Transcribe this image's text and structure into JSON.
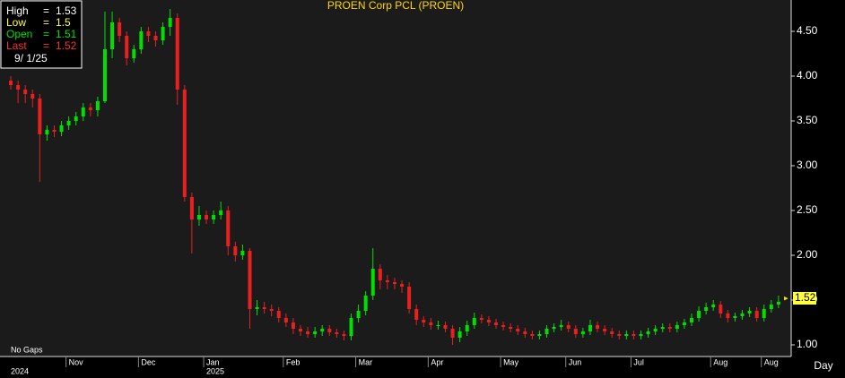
{
  "chart_data": {
    "type": "candlestick",
    "title": "PROEN  Corp  PCL  (PROEN)",
    "ylim": [
      0.87,
      4.85
    ],
    "yticks": [
      {
        "value": 1.0,
        "label": "1.00"
      },
      {
        "value": 1.5,
        "label": "1.50"
      },
      {
        "value": 2.0,
        "label": "2.00"
      },
      {
        "value": 2.5,
        "label": "2.50"
      },
      {
        "value": 3.0,
        "label": "3.00"
      },
      {
        "value": 3.5,
        "label": "3.50"
      },
      {
        "value": 4.0,
        "label": "4.00"
      },
      {
        "value": 4.5,
        "label": "4.50"
      }
    ],
    "up_color": "#00e000",
    "down_color": "#e82020",
    "categories": [
      null,
      null,
      null,
      null,
      null,
      null,
      null,
      null,
      "Nov",
      null,
      null,
      null,
      null,
      null,
      null,
      null,
      null,
      null,
      "Dec",
      null,
      null,
      null,
      null,
      null,
      null,
      null,
      null,
      "Jan",
      null,
      null,
      null,
      null,
      null,
      null,
      null,
      null,
      null,
      null,
      "Feb",
      null,
      null,
      null,
      null,
      null,
      null,
      null,
      null,
      null,
      "Mar",
      null,
      null,
      null,
      null,
      null,
      null,
      null,
      null,
      null,
      "Apr",
      null,
      null,
      null,
      null,
      null,
      null,
      null,
      null,
      null,
      "May",
      null,
      null,
      null,
      null,
      null,
      null,
      null,
      null,
      "Jun",
      null,
      null,
      null,
      null,
      null,
      null,
      null,
      null,
      "Jul",
      null,
      null,
      null,
      null,
      null,
      null,
      null,
      null,
      null,
      null,
      "Aug",
      null,
      null,
      null,
      null,
      null,
      null,
      "Aug",
      null,
      null,
      null
    ],
    "year_categories": [
      "2024",
      null,
      null,
      null,
      null,
      null,
      null,
      null,
      null,
      null,
      null,
      null,
      null,
      null,
      null,
      null,
      null,
      null,
      null,
      null,
      null,
      null,
      null,
      null,
      null,
      null,
      null,
      "2025",
      null,
      null
    ],
    "open": [
      3.95,
      3.9,
      3.85,
      3.8,
      3.75,
      3.35,
      3.4,
      3.38,
      3.45,
      3.5,
      3.55,
      3.65,
      3.62,
      3.72,
      4.3,
      4.6,
      4.45,
      4.2,
      4.3,
      4.5,
      4.45,
      4.4,
      4.55,
      4.65,
      3.85,
      2.65,
      2.4,
      2.45,
      2.4,
      2.45,
      2.5,
      2.1,
      2.0,
      2.05,
      1.4,
      1.42,
      1.4,
      1.38,
      1.3,
      1.25,
      1.18,
      1.15,
      1.12,
      1.15,
      1.18,
      1.14,
      1.12,
      1.1,
      1.3,
      1.38,
      1.55,
      1.85,
      1.72,
      1.7,
      1.68,
      1.65,
      1.4,
      1.28,
      1.25,
      1.22,
      1.22,
      1.18,
      1.08,
      1.15,
      1.22,
      1.3,
      1.28,
      1.25,
      1.22,
      1.2,
      1.18,
      1.15,
      1.12,
      1.1,
      1.12,
      1.18,
      1.2,
      1.22,
      1.18,
      1.12,
      1.15,
      1.22,
      1.18,
      1.15,
      1.12,
      1.1,
      1.12,
      1.1,
      1.12,
      1.15,
      1.18,
      1.2,
      1.18,
      1.22,
      1.25,
      1.3,
      1.38,
      1.42,
      1.45,
      1.35,
      1.3,
      1.32,
      1.35,
      1.38,
      1.3,
      1.4,
      1.45,
      1.51
    ],
    "high": [
      4.0,
      3.95,
      3.9,
      3.85,
      3.8,
      3.45,
      3.45,
      3.5,
      3.55,
      3.6,
      3.7,
      3.7,
      3.77,
      4.72,
      4.72,
      4.65,
      4.5,
      4.35,
      4.55,
      4.55,
      4.5,
      4.6,
      4.75,
      4.7,
      3.9,
      2.7,
      2.55,
      2.5,
      2.5,
      2.6,
      2.55,
      2.15,
      2.12,
      2.08,
      1.5,
      1.48,
      1.45,
      1.42,
      1.35,
      1.3,
      1.22,
      1.2,
      1.2,
      1.22,
      1.22,
      1.18,
      1.16,
      1.35,
      1.45,
      1.6,
      2.08,
      1.9,
      1.78,
      1.75,
      1.72,
      1.7,
      1.45,
      1.32,
      1.3,
      1.27,
      1.26,
      1.22,
      1.2,
      1.27,
      1.36,
      1.34,
      1.32,
      1.29,
      1.26,
      1.24,
      1.22,
      1.19,
      1.16,
      1.16,
      1.22,
      1.24,
      1.28,
      1.26,
      1.22,
      1.19,
      1.28,
      1.26,
      1.22,
      1.19,
      1.16,
      1.16,
      1.16,
      1.16,
      1.19,
      1.22,
      1.24,
      1.24,
      1.26,
      1.29,
      1.35,
      1.43,
      1.47,
      1.5,
      1.49,
      1.39,
      1.36,
      1.39,
      1.42,
      1.42,
      1.45,
      1.5,
      1.55,
      1.53
    ],
    "low": [
      3.85,
      3.7,
      3.7,
      3.65,
      2.82,
      3.28,
      3.32,
      3.33,
      3.4,
      3.45,
      3.5,
      3.55,
      3.55,
      3.7,
      4.2,
      4.38,
      4.12,
      4.15,
      4.25,
      4.38,
      4.33,
      4.35,
      4.45,
      3.68,
      2.6,
      2.02,
      2.33,
      2.35,
      2.35,
      2.4,
      2.0,
      1.93,
      1.95,
      1.18,
      1.33,
      1.35,
      1.32,
      1.25,
      1.2,
      1.12,
      1.1,
      1.08,
      1.08,
      1.1,
      1.1,
      1.08,
      1.05,
      1.05,
      1.25,
      1.33,
      1.5,
      1.62,
      1.62,
      1.62,
      1.58,
      1.35,
      1.22,
      1.2,
      1.17,
      1.17,
      1.14,
      1.0,
      1.03,
      1.1,
      1.18,
      1.24,
      1.21,
      1.18,
      1.16,
      1.14,
      1.11,
      1.08,
      1.06,
      1.06,
      1.08,
      1.14,
      1.16,
      1.14,
      1.08,
      1.08,
      1.11,
      1.14,
      1.11,
      1.08,
      1.06,
      1.06,
      1.06,
      1.06,
      1.08,
      1.11,
      1.14,
      1.14,
      1.14,
      1.18,
      1.21,
      1.26,
      1.34,
      1.38,
      1.3,
      1.25,
      1.26,
      1.28,
      1.31,
      1.26,
      1.26,
      1.36,
      1.41,
      1.5
    ],
    "close": [
      3.9,
      3.85,
      3.8,
      3.75,
      3.35,
      3.4,
      3.38,
      3.45,
      3.5,
      3.55,
      3.65,
      3.62,
      3.72,
      4.3,
      4.6,
      4.45,
      4.2,
      4.3,
      4.5,
      4.45,
      4.4,
      4.55,
      4.65,
      3.85,
      2.65,
      2.4,
      2.45,
      2.4,
      2.45,
      2.5,
      2.1,
      2.0,
      2.05,
      1.4,
      1.42,
      1.4,
      1.38,
      1.3,
      1.25,
      1.18,
      1.15,
      1.12,
      1.15,
      1.18,
      1.14,
      1.12,
      1.1,
      1.3,
      1.38,
      1.55,
      1.85,
      1.72,
      1.7,
      1.68,
      1.65,
      1.4,
      1.28,
      1.25,
      1.22,
      1.22,
      1.18,
      1.08,
      1.15,
      1.22,
      1.3,
      1.28,
      1.25,
      1.22,
      1.2,
      1.18,
      1.15,
      1.12,
      1.1,
      1.12,
      1.18,
      1.2,
      1.22,
      1.18,
      1.12,
      1.15,
      1.22,
      1.18,
      1.15,
      1.12,
      1.1,
      1.12,
      1.1,
      1.12,
      1.15,
      1.18,
      1.2,
      1.18,
      1.22,
      1.25,
      1.3,
      1.38,
      1.42,
      1.45,
      1.35,
      1.3,
      1.32,
      1.35,
      1.38,
      1.3,
      1.4,
      1.45,
      1.48,
      1.52
    ],
    "last_price_label": 1.52,
    "info": [
      {
        "label": "High",
        "sign": "=",
        "value": 1.53,
        "color": "#ffffff"
      },
      {
        "label": "Low",
        "sign": "=",
        "value": 1.5,
        "color": "#ffff40"
      },
      {
        "label": "Open",
        "sign": "=",
        "value": 1.51,
        "color": "#00e000"
      },
      {
        "label": "Last",
        "sign": "=",
        "value": 1.52,
        "color": "#ff3030"
      }
    ],
    "date": "9/  1/25",
    "gap_note": "No Gaps",
    "period": "Day"
  }
}
